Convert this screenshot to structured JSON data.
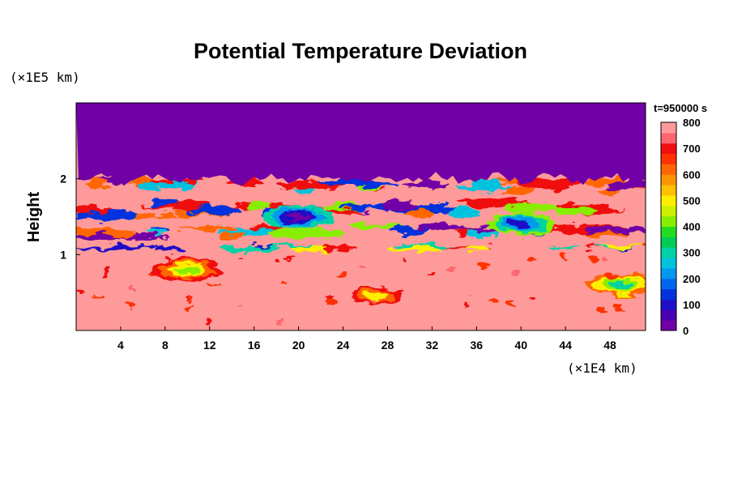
{
  "chart_data": {
    "type": "heatmap",
    "title": "Potential Temperature Deviation",
    "ylabel": "Height",
    "y_unit": "(×1E5 km)",
    "x_unit": "(×1E4 km)",
    "time_label": "t=950000 s",
    "x_ticks": [
      4,
      8,
      12,
      16,
      20,
      24,
      28,
      32,
      36,
      40,
      44,
      48
    ],
    "y_ticks": [
      1,
      2
    ],
    "xlim": [
      0,
      51.2
    ],
    "ylim": [
      0,
      3.0
    ],
    "colorbar": {
      "range": [
        0,
        800
      ],
      "ticks": [
        0,
        100,
        200,
        300,
        400,
        500,
        600,
        700,
        800
      ],
      "colors": [
        "#7100a6",
        "#4a00b3",
        "#1f10c7",
        "#0033dd",
        "#0066ee",
        "#0099ee",
        "#00c2dd",
        "#00d2a6",
        "#00cc55",
        "#22dd22",
        "#88ee00",
        "#ccf000",
        "#ffee00",
        "#ffc000",
        "#ff9400",
        "#ff6600",
        "#ff3200",
        "#f01010",
        "#ff6670",
        "#ff9a9a"
      ]
    },
    "regions": {
      "background_level": 800,
      "top_layer_level": 0,
      "top_layer_base_height": 2.0,
      "turbulent_band_heights": [
        1.3,
        1.6,
        1.9
      ],
      "lower_band_height": 1.1,
      "features": [
        {
          "name": "left plume",
          "x": 10,
          "y": 0.8,
          "level": 600
        },
        {
          "name": "center vortex",
          "x": 27,
          "y": 0.45,
          "level": 700
        },
        {
          "name": "right plume",
          "x": 49,
          "y": 0.6,
          "level": 500
        },
        {
          "name": "mid blob",
          "x": 20,
          "y": 1.5,
          "level": 200
        },
        {
          "name": "right blob",
          "x": 40,
          "y": 1.4,
          "level": 300
        }
      ]
    }
  }
}
